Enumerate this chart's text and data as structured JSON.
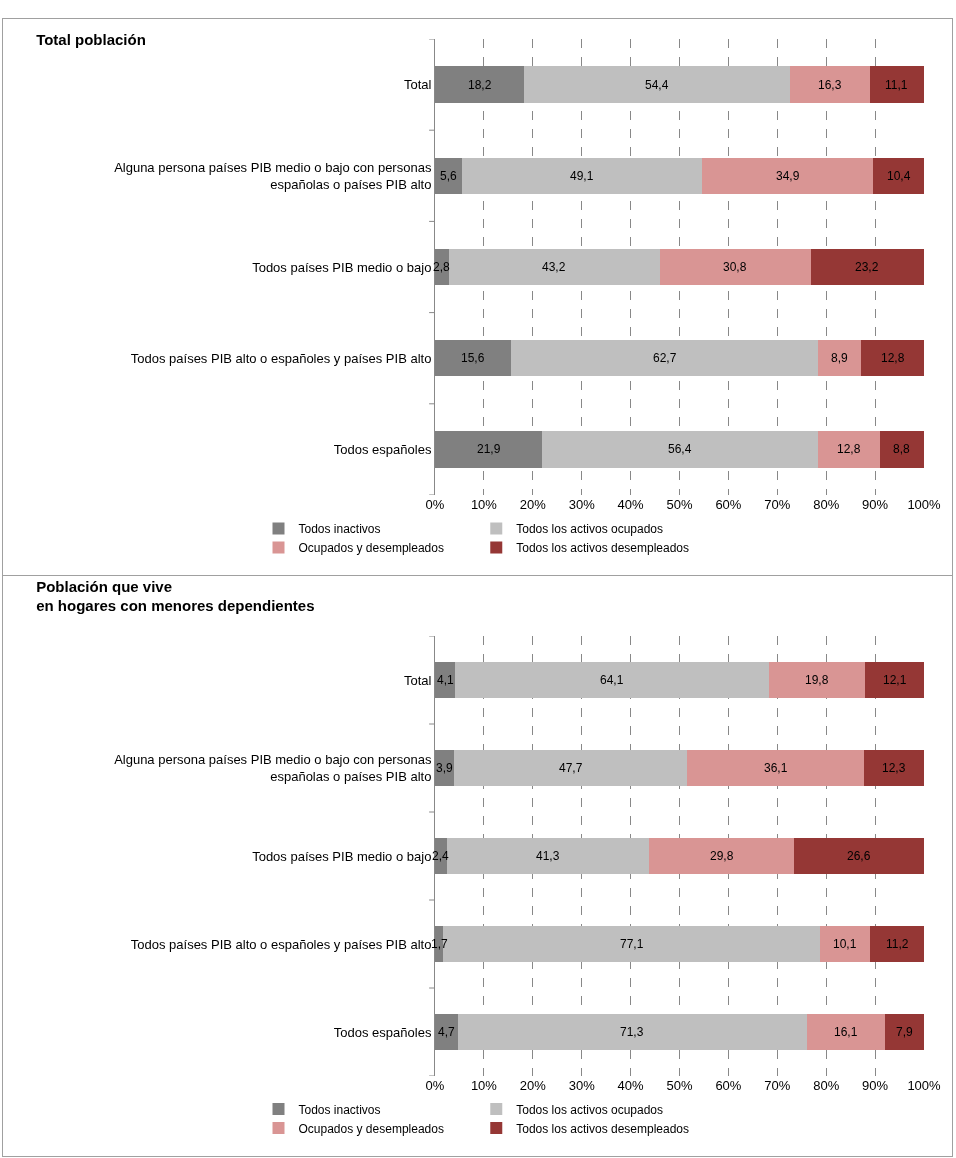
{
  "chart_data": [
    {
      "type": "bar",
      "orientation": "horizontal",
      "stacked": true,
      "title": "Total población",
      "categories": [
        "Total",
        "Alguna persona países PIB medio o bajo con personas españolas o países PIB alto",
        "Todos países PIB medio o bajo",
        "Todos países PIB alto o españoles y países PIB alto",
        "Todos españoles"
      ],
      "series": [
        {
          "name": "Todos inactivos",
          "color": "#808080",
          "values": [
            18.2,
            5.6,
            2.8,
            15.6,
            21.9
          ],
          "value_labels": [
            "18,2",
            "5,6",
            "2,8",
            "15,6",
            "21,9"
          ]
        },
        {
          "name": "Todos los activos ocupados",
          "color": "#bfbfbf",
          "values": [
            54.4,
            49.1,
            43.2,
            62.7,
            56.4
          ],
          "value_labels": [
            "54,4",
            "49,1",
            "43,2",
            "62,7",
            "56,4"
          ]
        },
        {
          "name": "Ocupados y desempleados",
          "color": "#d99594",
          "values": [
            16.3,
            34.9,
            30.8,
            8.9,
            12.8
          ],
          "value_labels": [
            "16,3",
            "34,9",
            "30,8",
            "8,9",
            "12,8"
          ]
        },
        {
          "name": "Todos los activos desempleados",
          "color": "#953735",
          "values": [
            11.1,
            10.4,
            23.2,
            12.8,
            8.8
          ],
          "value_labels": [
            "11,1",
            "10,4",
            "23,2",
            "12,8",
            "8,8"
          ]
        }
      ],
      "xlim": [
        0,
        100
      ],
      "xticks": [
        {
          "value": 0,
          "label": "0%"
        },
        {
          "value": 10,
          "label": "10%"
        },
        {
          "value": 20,
          "label": "20%"
        },
        {
          "value": 30,
          "label": "30%"
        },
        {
          "value": 40,
          "label": "40%"
        },
        {
          "value": 50,
          "label": "50%"
        },
        {
          "value": 60,
          "label": "60%"
        },
        {
          "value": 70,
          "label": "70%"
        },
        {
          "value": 80,
          "label": "80%"
        },
        {
          "value": 90,
          "label": "90%"
        },
        {
          "value": 100,
          "label": "100%"
        }
      ],
      "grid": "x",
      "legend": "bottom"
    },
    {
      "type": "bar",
      "orientation": "horizontal",
      "stacked": true,
      "title": "Población que vive\nen hogares con menores dependientes",
      "categories": [
        "Total",
        "Alguna persona países PIB medio o bajo con personas españolas o países PIB alto",
        "Todos países PIB medio o bajo",
        "Todos países PIB alto o españoles y países PIB alto",
        "Todos españoles"
      ],
      "series": [
        {
          "name": "Todos inactivos",
          "color": "#808080",
          "values": [
            4.1,
            3.9,
            2.4,
            1.7,
            4.7
          ],
          "value_labels": [
            "4,1",
            "3,9",
            "2,4",
            "1,7",
            "4,7"
          ]
        },
        {
          "name": "Todos los activos ocupados",
          "color": "#bfbfbf",
          "values": [
            64.1,
            47.7,
            41.3,
            77.1,
            71.3
          ],
          "value_labels": [
            "64,1",
            "47,7",
            "41,3",
            "77,1",
            "71,3"
          ]
        },
        {
          "name": "Ocupados y desempleados",
          "color": "#d99594",
          "values": [
            19.8,
            36.1,
            29.8,
            10.1,
            16.1
          ],
          "value_labels": [
            "19,8",
            "36,1",
            "29,8",
            "10,1",
            "16,1"
          ]
        },
        {
          "name": "Todos los activos desempleados",
          "color": "#953735",
          "values": [
            12.1,
            12.3,
            26.6,
            11.2,
            7.9
          ],
          "value_labels": [
            "12,1",
            "12,3",
            "26,6",
            "11,2",
            "7,9"
          ]
        }
      ],
      "xlim": [
        0,
        100
      ],
      "xticks": [
        {
          "value": 0,
          "label": "0%"
        },
        {
          "value": 10,
          "label": "10%"
        },
        {
          "value": 20,
          "label": "20%"
        },
        {
          "value": 30,
          "label": "30%"
        },
        {
          "value": 40,
          "label": "40%"
        },
        {
          "value": 50,
          "label": "50%"
        },
        {
          "value": 60,
          "label": "60%"
        },
        {
          "value": 70,
          "label": "70%"
        },
        {
          "value": 80,
          "label": "80%"
        },
        {
          "value": 90,
          "label": "90%"
        },
        {
          "value": 100,
          "label": "100%"
        }
      ],
      "grid": "x",
      "legend": "bottom"
    }
  ]
}
